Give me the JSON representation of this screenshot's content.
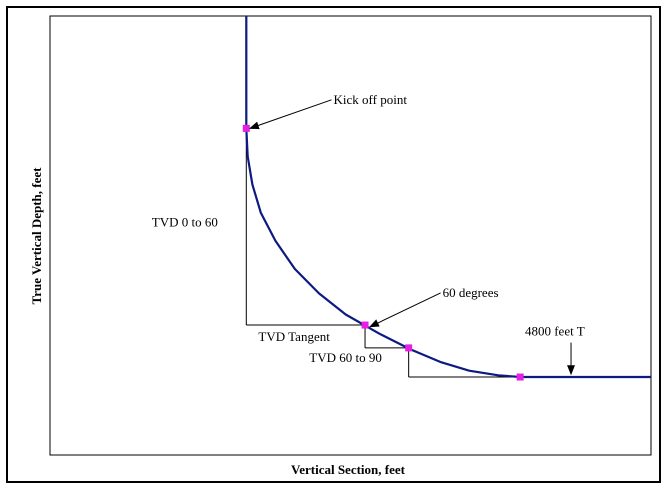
{
  "chart_data": {
    "type": "line",
    "title": "",
    "xlabel": "Vertical Section, feet",
    "ylabel": "True Vertical Depth, feet",
    "grid": false,
    "legend": "none",
    "colors": {
      "curve": "#0d1a80",
      "marker": "#e61ee6",
      "frame": "#000000",
      "helper": "#000000"
    },
    "series": [
      {
        "values": [
          {
            "x": 0,
            "y": 0
          },
          {
            "x": 0,
            "y": 32
          },
          {
            "x": 0.6,
            "y": 40
          },
          {
            "x": 2.5,
            "y": 48
          },
          {
            "x": 6,
            "y": 56
          },
          {
            "x": 12,
            "y": 64
          },
          {
            "x": 20,
            "y": 72
          },
          {
            "x": 30,
            "y": 79
          },
          {
            "x": 41,
            "y": 85
          },
          {
            "x": 55,
            "y": 90.5
          },
          {
            "x": 68,
            "y": 95
          },
          {
            "x": 80,
            "y": 98.5
          },
          {
            "x": 92,
            "y": 101
          },
          {
            "x": 104,
            "y": 102.3
          },
          {
            "x": 113,
            "y": 102.8
          },
          {
            "x": 135,
            "y": 102.8
          },
          {
            "x": 167,
            "y": 102.8
          }
        ]
      }
    ],
    "markers": [
      {
        "x": 0,
        "y": 32
      },
      {
        "x": 49,
        "y": 88
      },
      {
        "x": 67,
        "y": 94.5
      },
      {
        "x": 113,
        "y": 102.8
      }
    ],
    "helper_lines": [
      {
        "from": {
          "x": 0,
          "y": 32
        },
        "to": {
          "x": 0,
          "y": 88
        }
      },
      {
        "from": {
          "x": 0,
          "y": 88
        },
        "to": {
          "x": 49,
          "y": 88
        }
      },
      {
        "from": {
          "x": 49,
          "y": 88
        },
        "to": {
          "x": 49,
          "y": 94.5
        }
      },
      {
        "from": {
          "x": 49,
          "y": 94.5
        },
        "to": {
          "x": 67,
          "y": 94.5
        }
      },
      {
        "from": {
          "x": 67,
          "y": 94.5
        },
        "to": {
          "x": 67,
          "y": 102.8
        }
      },
      {
        "from": {
          "x": 67,
          "y": 102.8
        },
        "to": {
          "x": 113,
          "y": 102.8
        }
      }
    ],
    "annotations": [
      {
        "text": "Kick off point",
        "x": 36,
        "y": 25,
        "anchor": "start",
        "arrow_to": {
          "x": 1.5,
          "y": 32
        }
      },
      {
        "text": "TVD 0 to 60",
        "x": -39,
        "y": 60,
        "anchor": "start"
      },
      {
        "text": "60 degrees",
        "x": 81,
        "y": 80,
        "anchor": "start",
        "arrow_to": {
          "x": 51,
          "y": 88.5
        }
      },
      {
        "text": "TVD Tangent",
        "x": 5,
        "y": 92.5,
        "anchor": "start"
      },
      {
        "text": "TVD 60 to 90",
        "x": 26,
        "y": 98.5,
        "anchor": "start"
      },
      {
        "text": "4800 feet T",
        "x": 115,
        "y": 91,
        "anchor": "start",
        "arrow_from": {
          "x": 134,
          "y": 93
        },
        "arrow_to": {
          "x": 134,
          "y": 102
        }
      }
    ],
    "xlim": [
      -81,
      167
    ],
    "ylim": [
      0,
      125
    ]
  }
}
